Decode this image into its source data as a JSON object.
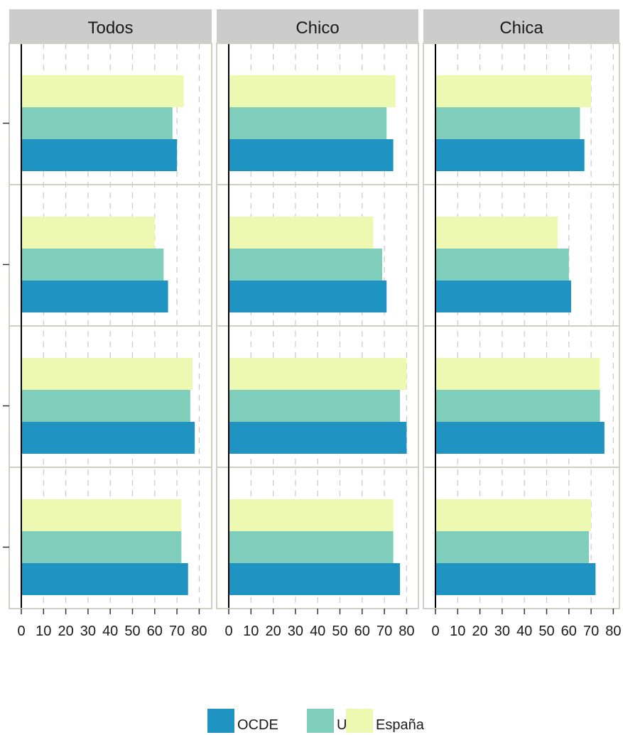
{
  "chart_data": {
    "type": "bar",
    "orientation": "horizontal",
    "facets": [
      "Todos",
      "Chico",
      "Chica"
    ],
    "rows": 4,
    "series": [
      {
        "name": "OCDE",
        "color": "#1f93c1"
      },
      {
        "name": "UE",
        "color": "#7fcdbb"
      },
      {
        "name": "España",
        "color": "#edf8b1"
      }
    ],
    "values": {
      "Todos": [
        {
          "OCDE": 70,
          "UE": 68,
          "España": 73
        },
        {
          "OCDE": 66,
          "UE": 64,
          "España": 60
        },
        {
          "OCDE": 78,
          "UE": 76,
          "España": 77
        },
        {
          "OCDE": 75,
          "UE": 72,
          "España": 72
        }
      ],
      "Chico": [
        {
          "OCDE": 74,
          "UE": 71,
          "España": 75
        },
        {
          "OCDE": 71,
          "UE": 69,
          "España": 65
        },
        {
          "OCDE": 80,
          "UE": 77,
          "España": 80
        },
        {
          "OCDE": 77,
          "UE": 74,
          "España": 74
        }
      ],
      "Chica": [
        {
          "OCDE": 67,
          "UE": 65,
          "España": 70
        },
        {
          "OCDE": 61,
          "UE": 60,
          "España": 55
        },
        {
          "OCDE": 76,
          "UE": 74,
          "España": 74
        },
        {
          "OCDE": 72,
          "UE": 69,
          "España": 70
        }
      ]
    },
    "x_ticks": [
      0,
      10,
      20,
      30,
      40,
      50,
      60,
      70,
      80
    ],
    "xlim": [
      0,
      82
    ],
    "grid": true,
    "legend_position": "bottom"
  }
}
